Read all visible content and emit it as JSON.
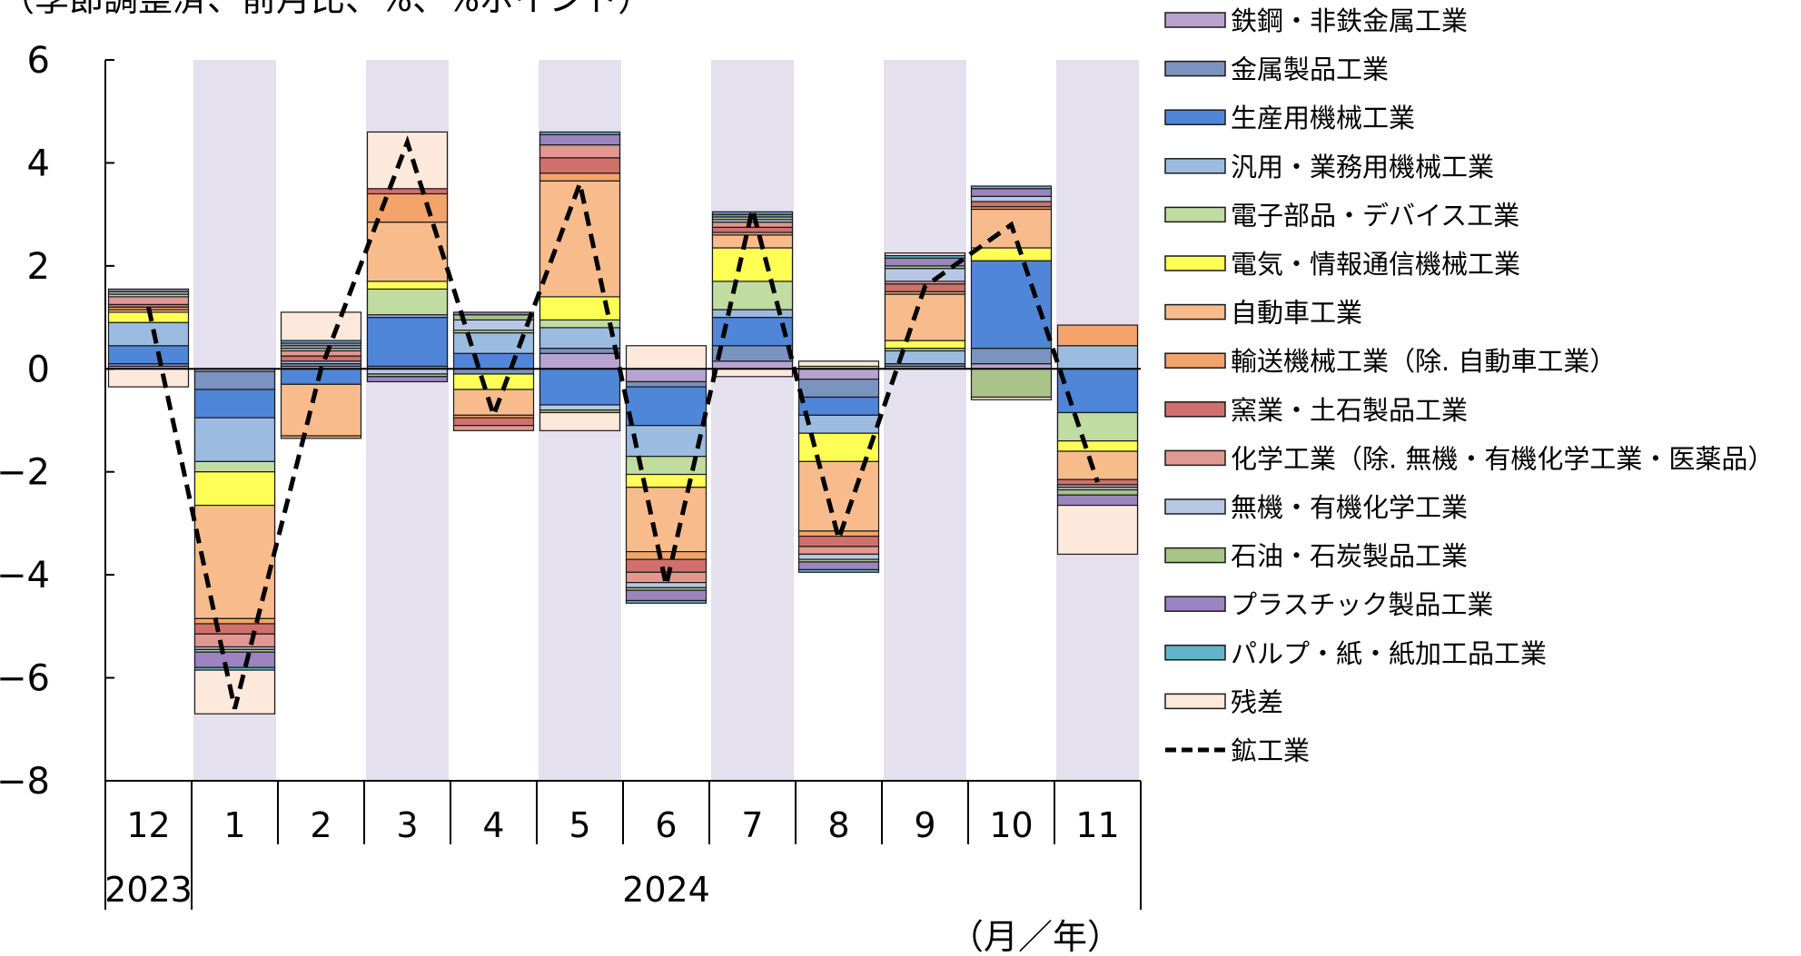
{
  "chart_data": {
    "type": "bar",
    "stacked": true,
    "subtitle": "（季節調整済、前月比、%、%ポイント）",
    "categories": [
      "12",
      "1",
      "2",
      "3",
      "4",
      "5",
      "6",
      "7",
      "8",
      "9",
      "10",
      "11"
    ],
    "year_labels": [
      {
        "text": "2023",
        "from": 0,
        "to": 0
      },
      {
        "text": "2024",
        "from": 1,
        "to": 11
      }
    ],
    "axis_unit_label": "（月／年）",
    "yticks": [
      6,
      4,
      2,
      0,
      -2,
      -4,
      -6,
      -8
    ],
    "ytick_labels": [
      "6",
      "4",
      "2",
      "0",
      "−2",
      "−4",
      "−6",
      "−8"
    ],
    "ylim": [
      -8,
      6
    ],
    "grid": false,
    "legend_position": "right",
    "shaded_columns": [
      1,
      3,
      5,
      7,
      9,
      11
    ],
    "shade_color": "#e5e0ee",
    "series": [
      {
        "name": "鉄鋼・非鉄金属工業",
        "color": "#b8a3d0",
        "values": [
          0.05,
          -0.05,
          0.05,
          0.0,
          0.0,
          0.3,
          -0.25,
          0.15,
          -0.2,
          0.05,
          0.1,
          0.0
        ]
      },
      {
        "name": "金属製品工業",
        "color": "#7b93c0",
        "values": [
          0.05,
          -0.35,
          0.05,
          0.05,
          -0.1,
          0.1,
          -0.1,
          0.3,
          -0.35,
          0.05,
          0.3,
          0.0
        ]
      },
      {
        "name": "生産用機械工業",
        "color": "#4f86d8",
        "values": [
          0.35,
          -0.55,
          -0.3,
          0.95,
          0.3,
          -0.7,
          -0.75,
          0.55,
          -0.35,
          0.0,
          1.7,
          -0.85
        ]
      },
      {
        "name": "汎用・業務用機械工業",
        "color": "#9bbce0",
        "values": [
          0.45,
          -0.85,
          0.05,
          0.05,
          0.4,
          0.4,
          -0.6,
          0.15,
          -0.35,
          0.25,
          0.0,
          0.45
        ]
      },
      {
        "name": "電子部品・デバイス工業",
        "color": "#c0dca0",
        "values": [
          0.0,
          -0.2,
          0.0,
          0.5,
          0.05,
          0.15,
          -0.35,
          0.55,
          0.05,
          0.05,
          0.0,
          -0.55
        ]
      },
      {
        "name": "電気・情報通信機械工業",
        "color": "#ffff55",
        "values": [
          0.2,
          -0.65,
          0.0,
          0.15,
          -0.3,
          0.45,
          -0.25,
          0.65,
          -0.55,
          0.15,
          0.25,
          -0.2
        ]
      },
      {
        "name": "自動車工業",
        "color": "#f8bc8c",
        "values": [
          0.05,
          -2.2,
          -1.0,
          1.15,
          -0.5,
          2.25,
          -1.25,
          0.25,
          -1.35,
          0.9,
          0.75,
          -0.55
        ]
      },
      {
        "name": "輸送機械工業（除. 自動車工業）",
        "color": "#f4a46a",
        "values": [
          0.05,
          -0.1,
          -0.05,
          0.55,
          -0.05,
          0.15,
          -0.15,
          0.05,
          -0.1,
          0.05,
          0.05,
          0.4
        ]
      },
      {
        "name": "窯業・土石製品工業",
        "color": "#d0706c",
        "values": [
          0.05,
          -0.2,
          0.1,
          0.1,
          -0.15,
          0.3,
          -0.25,
          0.1,
          -0.2,
          0.15,
          0.1,
          -0.1
        ]
      },
      {
        "name": "化学工業（除. 無機・有機化学工業・医薬品）",
        "color": "#e09890",
        "values": [
          0.15,
          -0.25,
          0.1,
          0.0,
          -0.1,
          0.25,
          -0.2,
          0.1,
          -0.15,
          0.05,
          0.0,
          -0.05
        ]
      },
      {
        "name": "無機・有機化学工業",
        "color": "#b8c8e4",
        "values": [
          0.05,
          -0.05,
          0.05,
          -0.1,
          0.2,
          -0.1,
          -0.1,
          0.05,
          -0.1,
          0.25,
          0.1,
          -0.05
        ]
      },
      {
        "name": "石油・石炭製品工業",
        "color": "#a8c488",
        "values": [
          0.05,
          -0.05,
          0.05,
          -0.05,
          0.1,
          -0.05,
          -0.05,
          0.05,
          -0.05,
          0.05,
          -0.55,
          -0.1
        ]
      },
      {
        "name": "プラスチック製品工業",
        "color": "#9b84c0",
        "values": [
          0.05,
          -0.3,
          0.05,
          -0.1,
          0.05,
          0.2,
          -0.2,
          0.05,
          -0.15,
          0.15,
          0.15,
          -0.2
        ]
      },
      {
        "name": "パルプ・紙・紙加工品工業",
        "color": "#62b4cc",
        "values": [
          0.0,
          -0.05,
          0.05,
          0.0,
          0.0,
          0.05,
          -0.05,
          0.05,
          -0.05,
          0.05,
          0.05,
          0.0
        ]
      },
      {
        "name": "残差",
        "color": "#fde8dc",
        "values": [
          -0.35,
          -0.85,
          0.55,
          1.1,
          0.0,
          -0.35,
          0.45,
          -0.15,
          0.1,
          0.05,
          -0.05,
          -0.95
        ]
      }
    ],
    "line_series": {
      "name": "鉱工業",
      "color": "#000000",
      "values": [
        1.2,
        -6.6,
        0.0,
        4.4,
        -0.9,
        3.6,
        -4.2,
        3.1,
        -3.3,
        1.6,
        2.8,
        -2.2
      ]
    }
  }
}
